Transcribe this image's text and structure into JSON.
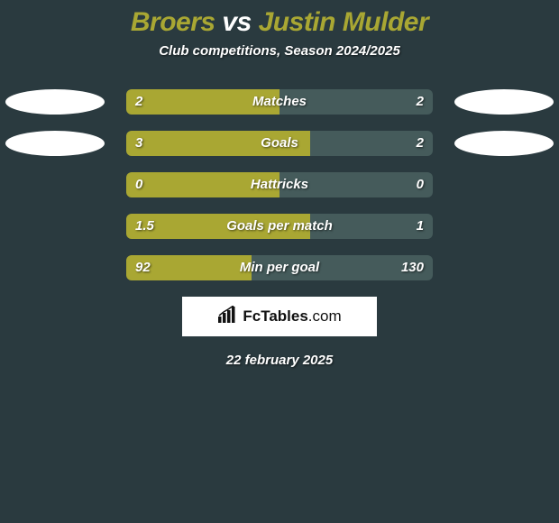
{
  "background_color": "#2a3a3f",
  "title": {
    "left_text": "Broers",
    "vs_text": " vs ",
    "right_text": "Justin Mulder",
    "left_color": "#a9a733",
    "vs_color": "#ffffff",
    "right_color": "#a9a733",
    "fontsize": 30
  },
  "subtitle": "Club competitions, Season 2024/2025",
  "player_left_color": "#a9a733",
  "player_right_color": "#455b5b",
  "ellipse_color": "#ffffff",
  "stat_rows": [
    {
      "label": "Matches",
      "left_value": "2",
      "right_value": "2",
      "left_pct": 50,
      "right_pct": 50,
      "show_left_ellipse": true,
      "show_right_ellipse": true
    },
    {
      "label": "Goals",
      "left_value": "3",
      "right_value": "2",
      "left_pct": 60,
      "right_pct": 40,
      "show_left_ellipse": true,
      "show_right_ellipse": true
    },
    {
      "label": "Hattricks",
      "left_value": "0",
      "right_value": "0",
      "left_pct": 50,
      "right_pct": 50,
      "show_left_ellipse": false,
      "show_right_ellipse": false
    },
    {
      "label": "Goals per match",
      "left_value": "1.5",
      "right_value": "1",
      "left_pct": 60,
      "right_pct": 40,
      "show_left_ellipse": false,
      "show_right_ellipse": false
    },
    {
      "label": "Min per goal",
      "left_value": "92",
      "right_value": "130",
      "left_pct": 41,
      "right_pct": 59,
      "show_left_ellipse": false,
      "show_right_ellipse": false
    }
  ],
  "brand": {
    "name": "FcTables",
    "suffix": ".com"
  },
  "date_text": "22 february 2025"
}
